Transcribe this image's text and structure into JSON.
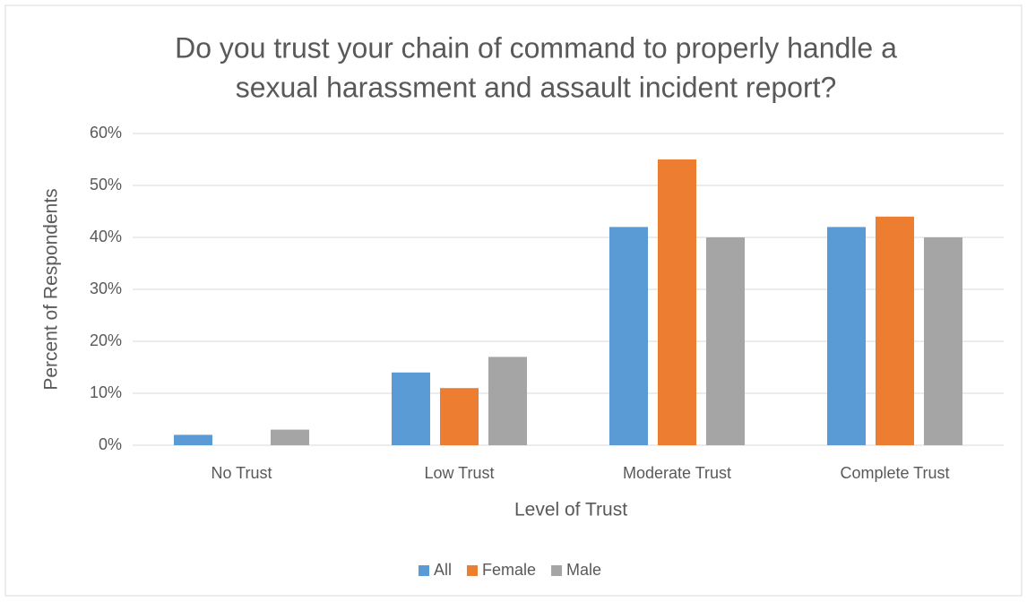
{
  "chart_data": {
    "type": "bar",
    "title": [
      "Do you trust your chain of command to properly handle a",
      "sexual harassment and assault incident report?"
    ],
    "x_label": "Level of Trust",
    "y_label": "Percent of Respondents",
    "categories": [
      "No Trust",
      "Low Trust",
      "Moderate Trust",
      "Complete Trust"
    ],
    "series": [
      {
        "name": "All",
        "color": "#5b9bd5",
        "values": [
          2,
          14,
          42,
          42
        ]
      },
      {
        "name": "Female",
        "color": "#ed7d31",
        "values": [
          0,
          11,
          55,
          44
        ]
      },
      {
        "name": "Male",
        "color": "#a5a5a5",
        "values": [
          3,
          17,
          40,
          40
        ]
      }
    ],
    "ylim": [
      0,
      60
    ],
    "yticks": [
      {
        "value": 0,
        "label": "0%"
      },
      {
        "value": 10,
        "label": "10%"
      },
      {
        "value": 20,
        "label": "20%"
      },
      {
        "value": 30,
        "label": "30%"
      },
      {
        "value": 40,
        "label": "40%"
      },
      {
        "value": 50,
        "label": "50%"
      },
      {
        "value": 60,
        "label": "60%"
      }
    ],
    "grid": true,
    "legend": "bottom"
  }
}
